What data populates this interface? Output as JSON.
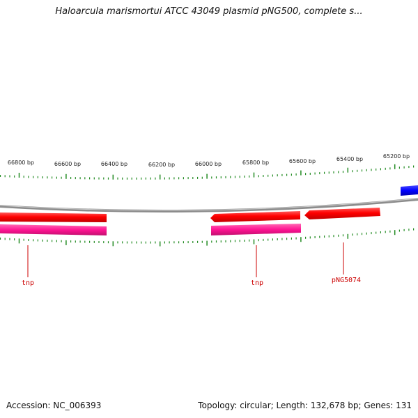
{
  "title": "Haloarcula marismortui ATCC 43049 plasmid pNG500, complete s...",
  "footer": {
    "accession": "Accession: NC_006393",
    "summary": "Topology: circular; Length: 132,678 bp; Genes: 131"
  },
  "colors": {
    "backbone": "#888888",
    "gene_arrow": "#ff0000",
    "cds_bar": "#ff1493",
    "blue_feature": "#0000ff",
    "tick": "#228b22",
    "gene_label": "#cc0000"
  },
  "scale_labels": [
    "66800 bp",
    "66600 bp",
    "66400 bp",
    "66200 bp",
    "66000 bp",
    "65800 bp",
    "65600 bp",
    "65400 bp",
    "65200 bp"
  ],
  "gene_labels": [
    "tnp",
    "tnp",
    "pNG5074"
  ]
}
